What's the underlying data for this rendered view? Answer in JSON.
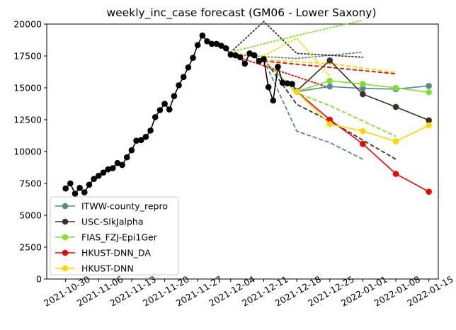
{
  "chart_data": {
    "type": "line",
    "title": "weekly_inc_case forecast (GM06 - Lower Saxony)",
    "xlabel": "",
    "ylabel": "",
    "x_type": "date",
    "xlim": [
      "2021-10-26",
      "2022-01-17"
    ],
    "ylim": [
      0,
      20000
    ],
    "x_ticks": [
      "2021-10-30",
      "2021-11-06",
      "2021-11-13",
      "2021-11-20",
      "2021-11-27",
      "2021-12-04",
      "2021-12-11",
      "2021-12-18",
      "2021-12-25",
      "2022-01-01",
      "2022-01-08",
      "2022-01-15"
    ],
    "y_ticks": [
      0,
      2500,
      5000,
      7500,
      10000,
      12500,
      15000,
      17500,
      20000
    ],
    "y_tick_labels": [
      "0",
      "2500",
      "5000",
      "7500",
      "10000",
      "12500",
      "15000",
      "17500",
      "20000"
    ],
    "legend_position": "lower left",
    "observed": {
      "color": "#000000",
      "x": [
        "2021-10-30",
        "2021-10-31",
        "2021-11-01",
        "2021-11-02",
        "2021-11-03",
        "2021-11-04",
        "2021-11-05",
        "2021-11-06",
        "2021-11-07",
        "2021-11-08",
        "2021-11-09",
        "2021-11-10",
        "2021-11-11",
        "2021-11-12",
        "2021-11-13",
        "2021-11-14",
        "2021-11-15",
        "2021-11-16",
        "2021-11-17",
        "2021-11-18",
        "2021-11-19",
        "2021-11-20",
        "2021-11-21",
        "2021-11-22",
        "2021-11-23",
        "2021-11-24",
        "2021-11-25",
        "2021-11-26",
        "2021-11-27",
        "2021-11-28",
        "2021-11-29",
        "2021-11-30",
        "2021-12-01",
        "2021-12-02",
        "2021-12-03",
        "2021-12-04",
        "2021-12-05",
        "2021-12-06",
        "2021-12-07",
        "2021-12-08",
        "2021-12-09",
        "2021-12-10",
        "2021-12-11",
        "2021-12-12",
        "2021-12-13",
        "2021-12-14",
        "2021-12-15",
        "2021-12-16",
        "2021-12-17",
        "2021-12-18"
      ],
      "y": [
        7100,
        7500,
        6700,
        7150,
        6800,
        7400,
        7850,
        8100,
        8350,
        8600,
        8700,
        9100,
        8950,
        9550,
        10100,
        10850,
        10900,
        11150,
        11650,
        12700,
        13250,
        13750,
        13300,
        14350,
        15200,
        15850,
        16600,
        17350,
        18350,
        19100,
        18650,
        18450,
        18450,
        18300,
        18100,
        17600,
        17550,
        17400,
        16900,
        17700,
        17550,
        17100,
        17250,
        15050,
        14000,
        16650,
        15400,
        15350,
        15300,
        14750
      ]
    },
    "series": [
      {
        "name": "ITWW-county_repro",
        "color": "#558a8f",
        "x": [
          "2021-12-18",
          "2021-12-25",
          "2022-01-01",
          "2022-01-08",
          "2022-01-15"
        ],
        "y": [
          14700,
          15100,
          14950,
          14900,
          15150
        ],
        "forecasts": [
          {
            "style": "dotted",
            "x": [
              "2021-12-04",
              "2021-12-18",
              "2022-01-01"
            ],
            "y": [
              17600,
              17300,
              17800
            ]
          },
          {
            "style": "dashed",
            "x": [
              "2021-12-11",
              "2021-12-18",
              "2021-12-25",
              "2022-01-01"
            ],
            "y": [
              17200,
              11600,
              10700,
              9400
            ]
          }
        ]
      },
      {
        "name": "USC-SIkJalpha",
        "color": "#3b3026",
        "x": [
          "2021-12-18",
          "2021-12-25",
          "2022-01-01",
          "2022-01-08",
          "2022-01-15"
        ],
        "y": [
          14750,
          17150,
          14500,
          13500,
          12450
        ],
        "forecasts": [
          {
            "style": "dotted",
            "x": [
              "2021-12-04",
              "2021-12-11",
              "2021-12-18",
              "2022-01-01"
            ],
            "y": [
              17800,
              20200,
              17700,
              17400
            ]
          },
          {
            "style": "dashed",
            "x": [
              "2021-12-11",
              "2021-12-18",
              "2021-12-25",
              "2022-01-08"
            ],
            "y": [
              17300,
              13700,
              12400,
              9400
            ]
          }
        ]
      },
      {
        "name": "FIAS_FZJ-Epi1Ger",
        "color": "#80e030",
        "x": [
          "2021-12-18",
          "2021-12-25",
          "2022-01-01",
          "2022-01-08",
          "2022-01-15"
        ],
        "y": [
          14700,
          15550,
          15300,
          15000,
          14650
        ],
        "forecasts": [
          {
            "style": "dotted",
            "x": [
              "2021-12-04",
              "2021-12-18",
              "2022-01-01"
            ],
            "y": [
              17800,
              19100,
              20300
            ]
          },
          {
            "style": "dashed",
            "x": [
              "2021-12-11",
              "2021-12-18",
              "2021-12-25",
              "2022-01-08"
            ],
            "y": [
              17200,
              14600,
              13600,
              11200
            ]
          }
        ]
      },
      {
        "name": "HKUST-DNN_DA",
        "color": "#f00000",
        "x": [
          "2021-12-18",
          "2021-12-25",
          "2022-01-01",
          "2022-01-08",
          "2022-01-15"
        ],
        "y": [
          14700,
          12500,
          10600,
          8250,
          6850
        ],
        "forecasts": [
          {
            "style": "dotted",
            "x": [
              "2021-12-04",
              "2021-12-25"
            ],
            "y": [
              17600,
              15000
            ]
          },
          {
            "style": "dashed",
            "x": [
              "2021-12-11",
              "2022-01-08"
            ],
            "y": [
              17100,
              16100
            ]
          }
        ]
      },
      {
        "name": "HKUST-DNN",
        "color": "#ffd700",
        "x": [
          "2021-12-18",
          "2021-12-25",
          "2022-01-01",
          "2022-01-08",
          "2022-01-15"
        ],
        "y": [
          14700,
          12150,
          11600,
          10800,
          12050
        ],
        "forecasts": [
          {
            "style": "dotted",
            "x": [
              "2021-12-04",
              "2021-12-11",
              "2021-12-18",
              "2021-12-25"
            ],
            "y": [
              17700,
              17500,
              18900,
              15900
            ]
          },
          {
            "style": "dashed",
            "x": [
              "2021-12-11",
              "2021-12-25",
              "2022-01-08"
            ],
            "y": [
              17200,
              16900,
              16200
            ]
          }
        ]
      }
    ]
  }
}
